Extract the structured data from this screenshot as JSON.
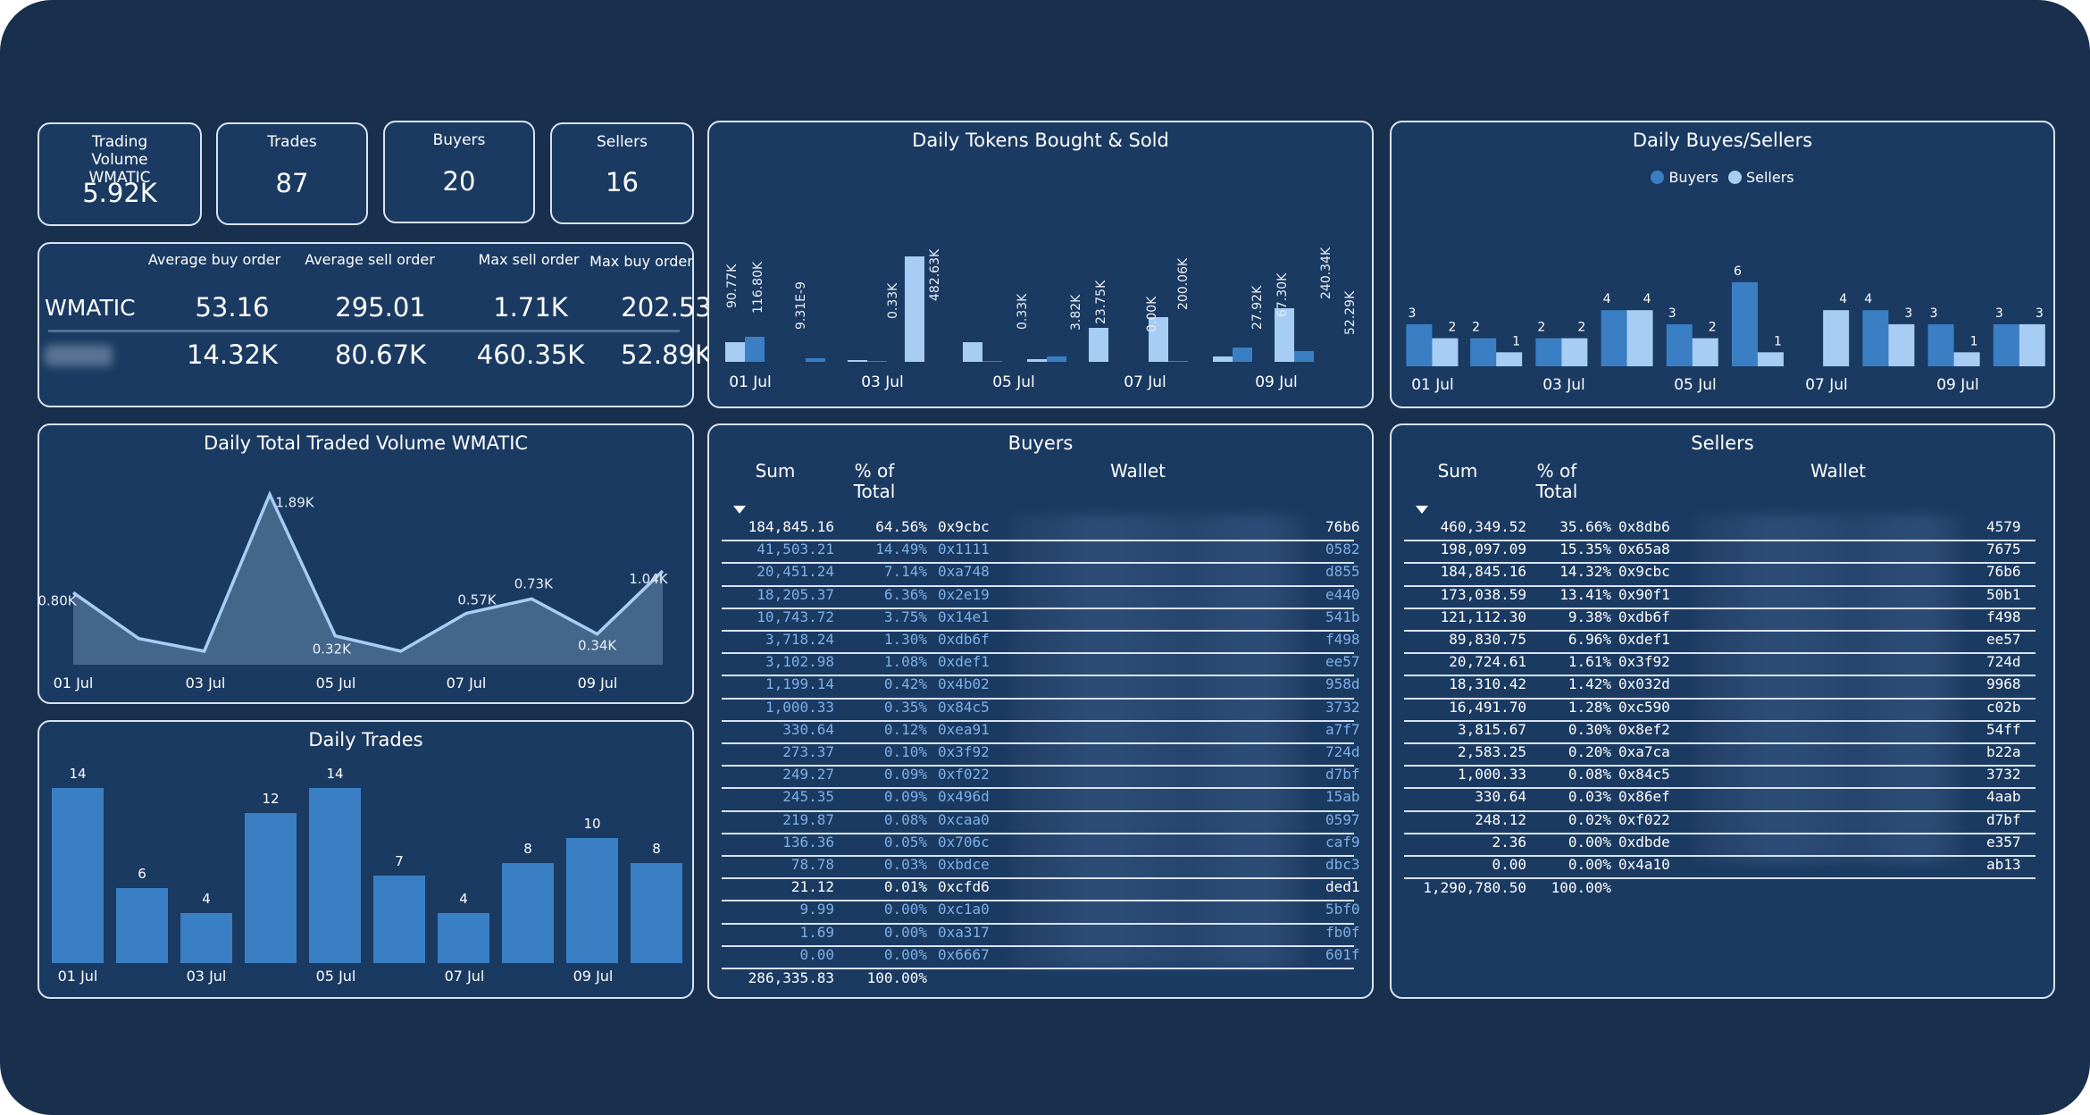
{
  "kpis": {
    "trading_volume": {
      "label": "Trading Volume WMATIC",
      "value": "5.92K"
    },
    "trades": {
      "label": "Trades",
      "value": "87"
    },
    "buyers": {
      "label": "Buyers",
      "value": "20"
    },
    "sellers": {
      "label": "Sellers",
      "value": "16"
    }
  },
  "order_stats": {
    "headers": [
      "Average buy order",
      "Average sell order",
      "Max sell order",
      "Max buy order"
    ],
    "row1": {
      "label": "WMATIC",
      "values": [
        "53.16",
        "295.01",
        "1.71K",
        "202.53"
      ]
    },
    "row2": {
      "label": "",
      "values": [
        "14.32K",
        "80.67K",
        "460.35K",
        "52.89K"
      ]
    }
  },
  "daily_tokens": {
    "title": "Daily Tokens Bought & Sold",
    "colors": {
      "dark": "#3a7fc4",
      "light": "#a8cdf5"
    },
    "labels": [
      "90.77K",
      "116.80K",
      "9.31E-9",
      "",
      "0.33K",
      "",
      "482.63K",
      "",
      "0.33K",
      "",
      "3.82K",
      "23.75K",
      "0.00K",
      "",
      "200.06K",
      "",
      "27.92K",
      "67.30K",
      "240.34K",
      "52.29K"
    ],
    "xticks": [
      "01 Jul",
      "03 Jul",
      "05 Jul",
      "07 Jul",
      "09 Jul"
    ]
  },
  "daily_buyes_sellers": {
    "title": "Daily Buyes/Sellers",
    "legend": [
      {
        "name": "Buyers",
        "color": "#3a7fc4"
      },
      {
        "name": "Sellers",
        "color": "#a8cdf5"
      }
    ],
    "xticks": [
      "01 Jul",
      "03 Jul",
      "05 Jul",
      "07 Jul",
      "09 Jul"
    ]
  },
  "volume_chart": {
    "title": "Daily Total Traded Volume WMATIC",
    "point_labels": [
      "0.80K",
      "1.89K",
      "0.32K",
      "0.57K",
      "0.73K",
      "0.34K",
      "1.04K"
    ],
    "xticks": [
      "01 Jul",
      "03 Jul",
      "05 Jul",
      "07 Jul",
      "09 Jul"
    ]
  },
  "trades_chart": {
    "title": "Daily Trades",
    "xticks": [
      "01 Jul",
      "03 Jul",
      "05 Jul",
      "07 Jul",
      "09 Jul"
    ]
  },
  "chart_data": [
    {
      "type": "bar",
      "title": "Daily Tokens Bought & Sold",
      "series": [
        {
          "name": "Bought",
          "values": [
            90.77,
            null,
            0.33,
            482.63,
            0.33,
            3.82,
            0.0,
            200.06,
            27.92,
            240.34
          ]
        },
        {
          "name": "Sold",
          "values": [
            116.8,
            0.0,
            0.0,
            0.0,
            0.0,
            23.75,
            0.0,
            0.0,
            67.3,
            52.29
          ]
        }
      ],
      "ylabel": "K"
    },
    {
      "type": "bar",
      "title": "Daily Buyes/Sellers",
      "series": [
        {
          "name": "Buyers",
          "values": [
            3,
            2,
            2,
            4,
            3,
            6,
            0,
            4,
            3,
            3
          ]
        },
        {
          "name": "Sellers",
          "values": [
            2,
            1,
            2,
            4,
            2,
            1,
            4,
            3,
            1,
            3
          ]
        }
      ]
    },
    {
      "type": "area",
      "title": "Daily Total Traded Volume WMATIC",
      "x": [
        "01 Jul",
        "02 Jul",
        "03 Jul",
        "04 Jul",
        "05 Jul",
        "06 Jul",
        "07 Jul",
        "08 Jul",
        "09 Jul",
        "10 Jul"
      ],
      "values": [
        0.8,
        0.29,
        0.15,
        1.89,
        0.32,
        0.15,
        0.57,
        0.73,
        0.34,
        1.04
      ],
      "ylim": [
        0,
        2.2
      ]
    },
    {
      "type": "bar",
      "title": "Daily Trades",
      "x": [
        "01 Jul",
        "02 Jul",
        "03 Jul",
        "04 Jul",
        "05 Jul",
        "06 Jul",
        "07 Jul",
        "08 Jul",
        "09 Jul",
        "10 Jul"
      ],
      "values": [
        14,
        6,
        4,
        12,
        14,
        7,
        4,
        8,
        10,
        8
      ],
      "ylim": [
        0,
        15
      ]
    }
  ],
  "buyers_table": {
    "title": "Buyers",
    "headers": [
      "Sum",
      "% of Total",
      "Wallet"
    ],
    "rows": [
      [
        "184,845.16",
        "64.56%",
        "0x9cbc",
        "76b6"
      ],
      [
        "41,503.21",
        "14.49%",
        "0x1111",
        "0582"
      ],
      [
        "20,451.24",
        "7.14%",
        "0xa748",
        "d855"
      ],
      [
        "18,205.37",
        "6.36%",
        "0x2e19",
        "e440"
      ],
      [
        "10,743.72",
        "3.75%",
        "0x14e1",
        "541b"
      ],
      [
        "3,718.24",
        "1.30%",
        "0xdb6f",
        "f498"
      ],
      [
        "3,102.98",
        "1.08%",
        "0xdef1",
        "ee57"
      ],
      [
        "1,199.14",
        "0.42%",
        "0x4b02",
        "958d"
      ],
      [
        "1,000.33",
        "0.35%",
        "0x84c5",
        "3732"
      ],
      [
        "330.64",
        "0.12%",
        "0xea91",
        "a7f7"
      ],
      [
        "273.37",
        "0.10%",
        "0x3f92",
        "724d"
      ],
      [
        "249.27",
        "0.09%",
        "0xf022",
        "d7bf"
      ],
      [
        "245.35",
        "0.09%",
        "0x496d",
        "15ab"
      ],
      [
        "219.87",
        "0.08%",
        "0xcaa0",
        "0597"
      ],
      [
        "136.36",
        "0.05%",
        "0x706c",
        "caf9"
      ],
      [
        "78.78",
        "0.03%",
        "0xbdce",
        "dbc3"
      ],
      [
        "21.12",
        "0.01%",
        "0xcfd6",
        "ded1"
      ],
      [
        "9.99",
        "0.00%",
        "0xc1a0",
        "5bf0"
      ],
      [
        "1.69",
        "0.00%",
        "0xa317",
        "fb0f"
      ],
      [
        "0.00",
        "0.00%",
        "0x6667",
        "601f"
      ]
    ],
    "total": [
      "286,335.83",
      "100.00%"
    ]
  },
  "sellers_table": {
    "title": "Sellers",
    "headers": [
      "Sum",
      "% of Total",
      "Wallet"
    ],
    "rows": [
      [
        "460,349.52",
        "35.66%",
        "0x8db6",
        "4579"
      ],
      [
        "198,097.09",
        "15.35%",
        "0x65a8",
        "7675"
      ],
      [
        "184,845.16",
        "14.32%",
        "0x9cbc",
        "76b6"
      ],
      [
        "173,038.59",
        "13.41%",
        "0x90f1",
        "50b1"
      ],
      [
        "121,112.30",
        "9.38%",
        "0xdb6f",
        "f498"
      ],
      [
        "89,830.75",
        "6.96%",
        "0xdef1",
        "ee57"
      ],
      [
        "20,724.61",
        "1.61%",
        "0x3f92",
        "724d"
      ],
      [
        "18,310.42",
        "1.42%",
        "0x032d",
        "9968"
      ],
      [
        "16,491.70",
        "1.28%",
        "0xc590",
        "c02b"
      ],
      [
        "3,815.67",
        "0.30%",
        "0x8ef2",
        "54ff"
      ],
      [
        "2,583.25",
        "0.20%",
        "0xa7ca",
        "b22a"
      ],
      [
        "1,000.33",
        "0.08%",
        "0x84c5",
        "3732"
      ],
      [
        "330.64",
        "0.03%",
        "0x86ef",
        "4aab"
      ],
      [
        "248.12",
        "0.02%",
        "0xf022",
        "d7bf"
      ],
      [
        "2.36",
        "0.00%",
        "0xdbde",
        "e357"
      ],
      [
        "0.00",
        "0.00%",
        "0x4a10",
        "ab13"
      ]
    ],
    "total": [
      "1,290,780.50",
      "100.00%"
    ]
  }
}
